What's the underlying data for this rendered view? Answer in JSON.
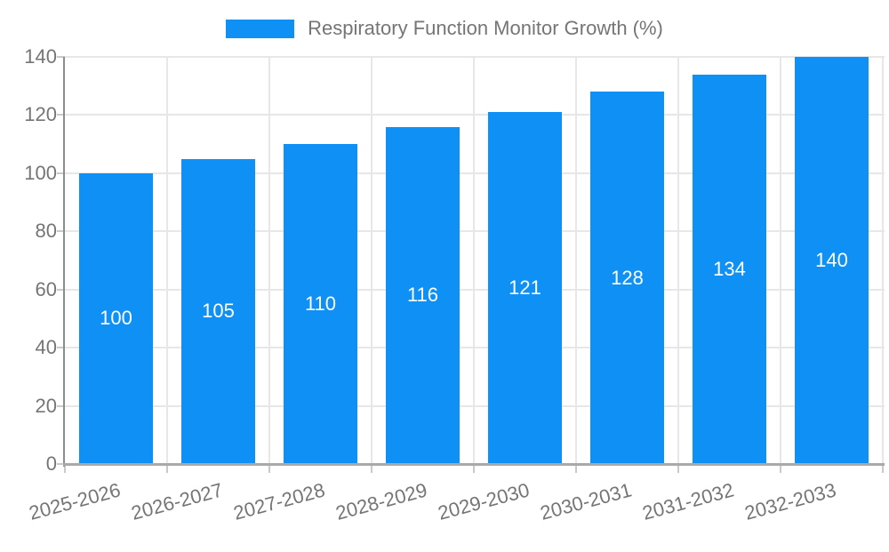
{
  "chart_data": {
    "type": "bar",
    "title": "Respiratory Function Monitor Growth (%)",
    "categories": [
      "2025-2026",
      "2026-2027",
      "2027-2028",
      "2028-2029",
      "2029-2030",
      "2030-2031",
      "2031-2032",
      "2032-2033"
    ],
    "values": [
      100,
      105,
      110,
      116,
      121,
      128,
      134,
      140
    ],
    "xlabel": "",
    "ylabel": "",
    "ylim": [
      0,
      140
    ],
    "y_ticks": [
      0,
      20,
      40,
      60,
      80,
      100,
      120,
      140
    ],
    "grid": true,
    "legend_position": "top-center",
    "value_labels": "inside-center",
    "x_label_rotation_deg": -15,
    "colors": {
      "bar": "#0E90F5",
      "value_label": "#FFFFFF",
      "axis_text": "#757575",
      "legend_text": "#757575",
      "gridline": "#E7E7E7",
      "y_axis_line": "#8C8C8C",
      "x_axis_line": "#A9A9A9",
      "tick": "#C9C9C9",
      "background": "#FFFFFF"
    }
  }
}
